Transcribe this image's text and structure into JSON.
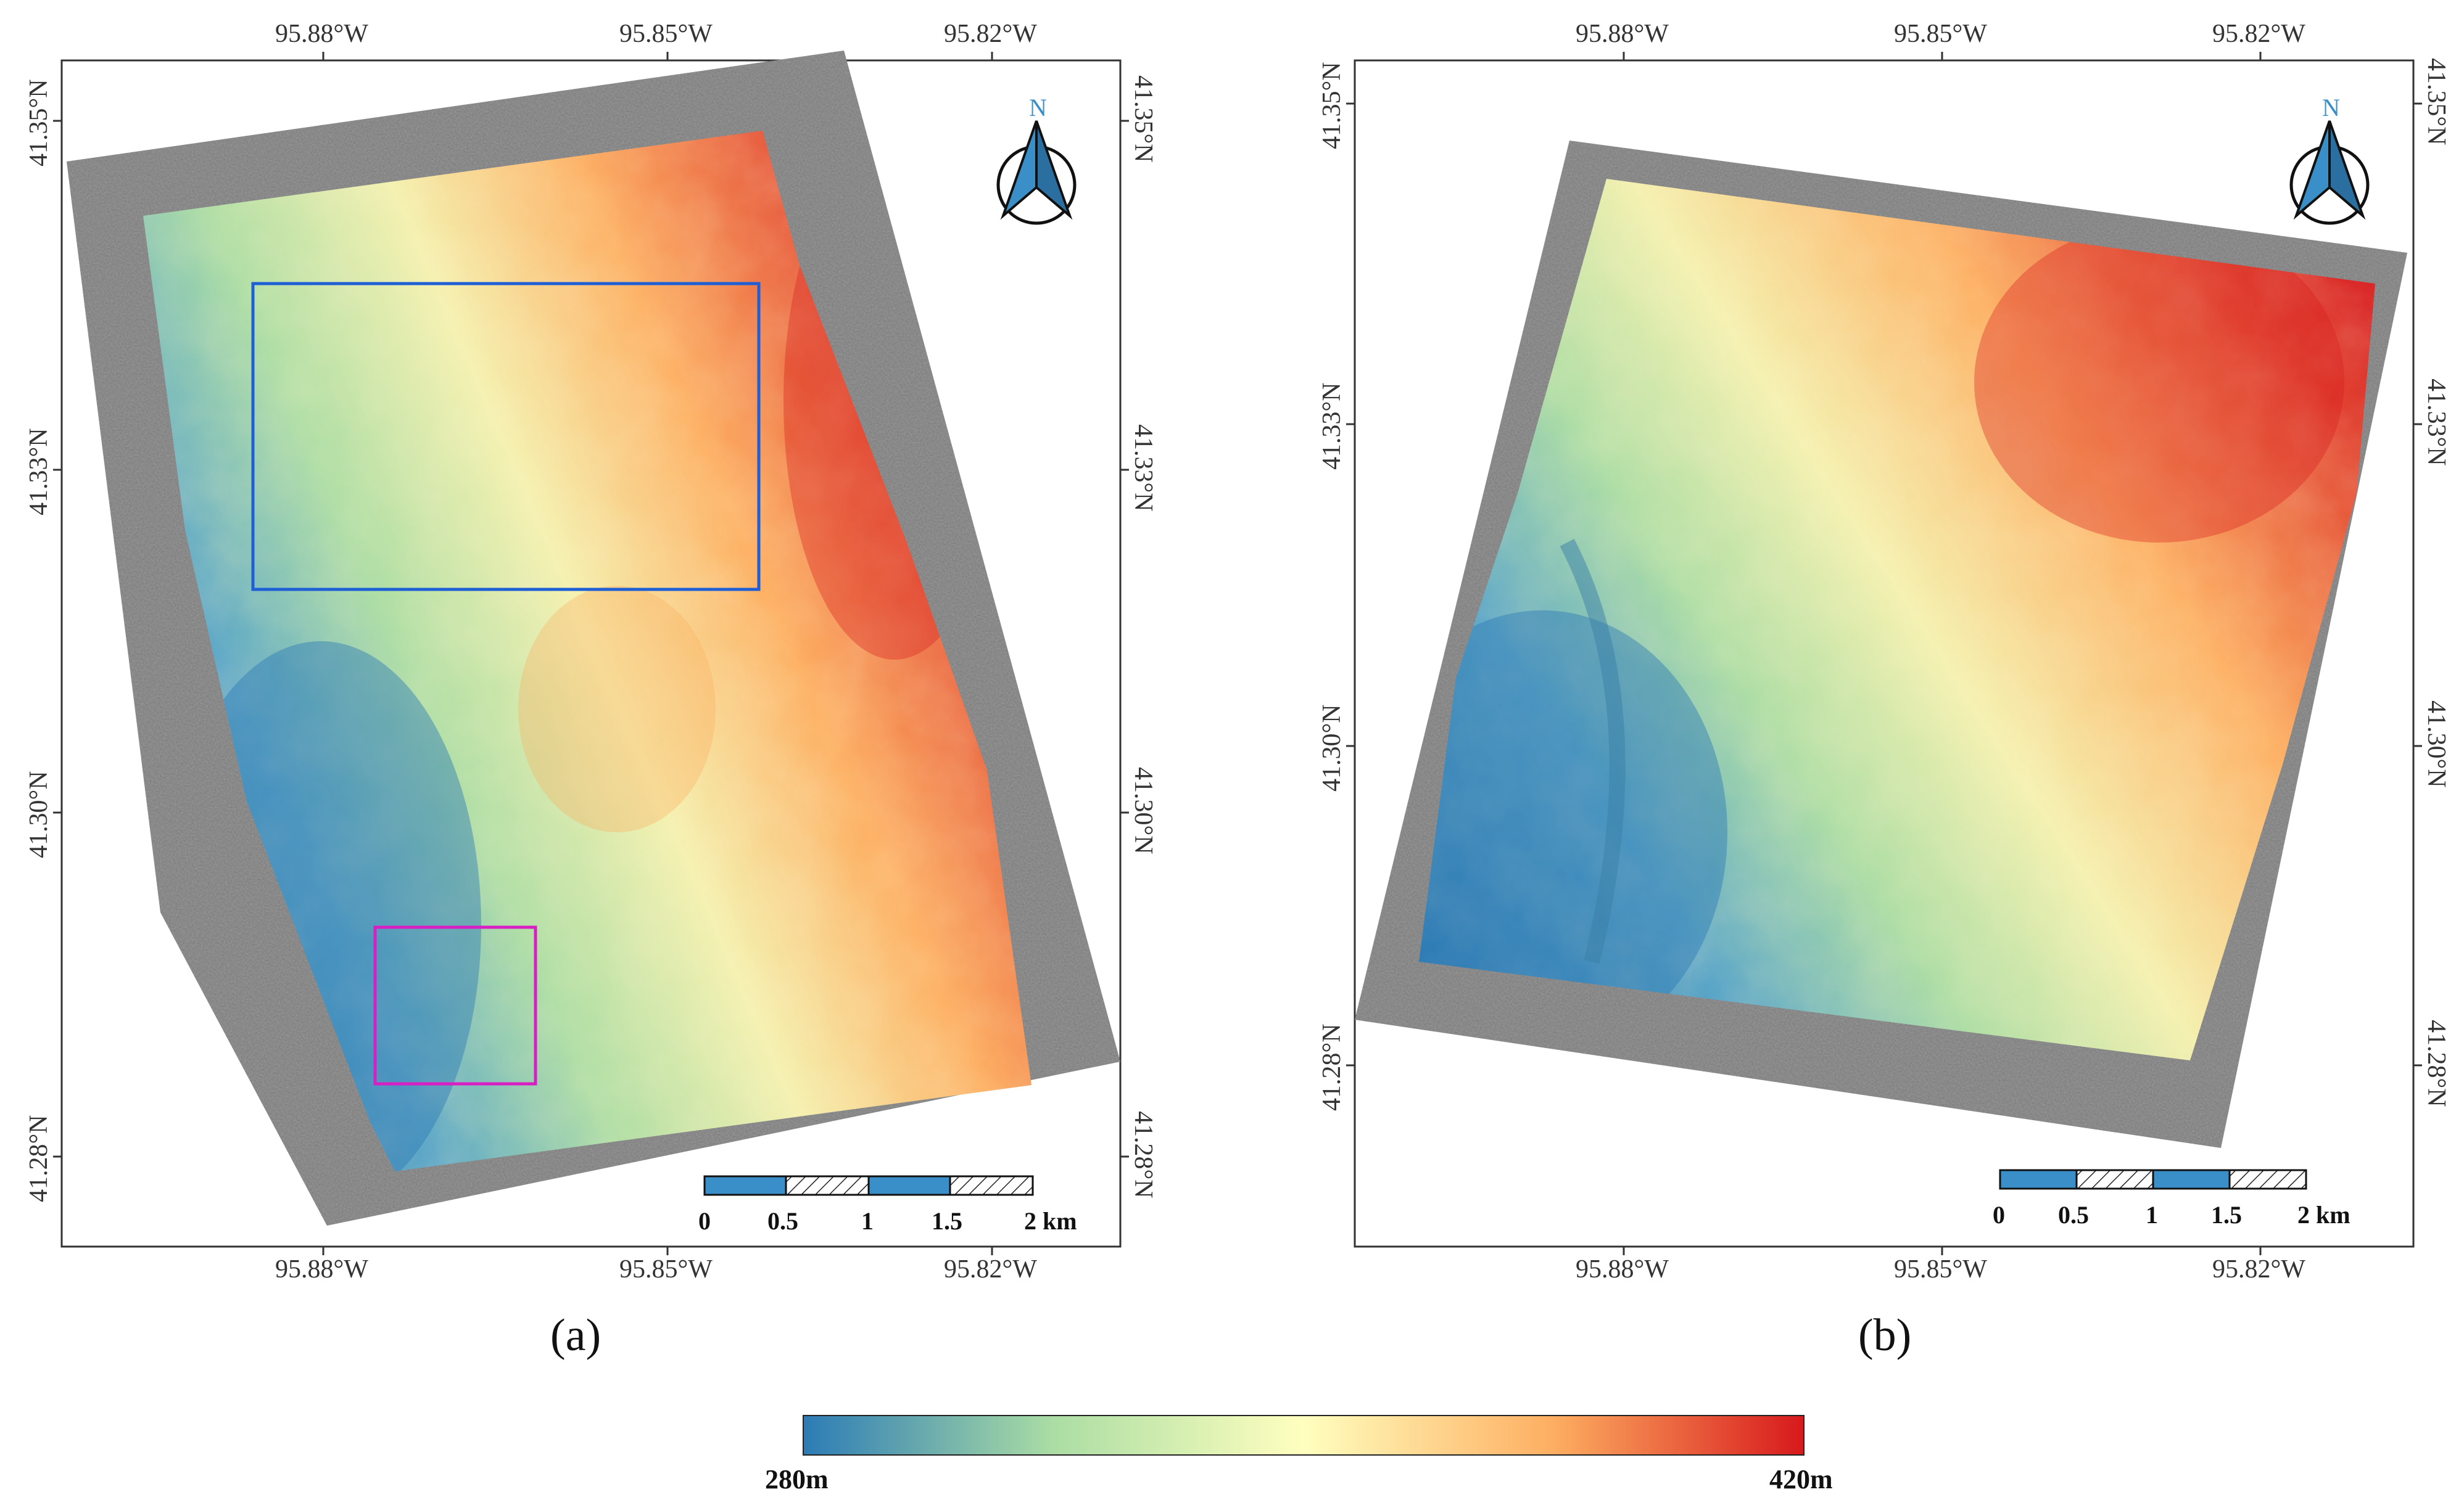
{
  "panels": [
    {
      "id": "a",
      "label": "(a)",
      "lon_ticks_top": [
        "95.88°W",
        "95.85°W",
        "95.82°W"
      ],
      "lon_ticks_bottom": [
        "95.88°W",
        "95.85°W",
        "95.82°W"
      ],
      "lat_ticks_left": [
        "41.35°N",
        "41.33°N",
        "41.30°N",
        "41.28°N"
      ],
      "lat_ticks_right": [
        "41.35°N",
        "41.33°N",
        "41.30°N",
        "41.28°N"
      ],
      "north_label": "N",
      "scale_labels": [
        "0",
        "0.5",
        "1",
        "1.5",
        "2 km"
      ],
      "boxes": [
        {
          "name": "blue-box",
          "color": "#1f5fd6"
        },
        {
          "name": "magenta-box",
          "color": "#d81fc4"
        }
      ]
    },
    {
      "id": "b",
      "label": "(b)",
      "lon_ticks_top": [
        "95.88°W",
        "95.85°W",
        "95.82°W"
      ],
      "lon_ticks_bottom": [
        "95.88°W",
        "95.85°W",
        "95.82°W"
      ],
      "lat_ticks_left": [
        "41.35°N",
        "41.33°N",
        "41.30°N",
        "41.28°N"
      ],
      "lat_ticks_right": [
        "41.35°N",
        "41.33°N",
        "41.30°N",
        "41.28°N"
      ],
      "north_label": "N",
      "scale_labels": [
        "0",
        "0.5",
        "1",
        "1.5",
        "2 km"
      ]
    }
  ],
  "colorbar": {
    "min_label": "280m",
    "max_label": "420m",
    "colors": [
      "#2c7bb6",
      "#abdda4",
      "#ffffbf",
      "#fdae61",
      "#d7191c"
    ]
  },
  "colors": {
    "sar_gray": "#7d7d7d",
    "scale_blue": "#3a8fc8",
    "north_arrow": "#3a8fc8"
  }
}
